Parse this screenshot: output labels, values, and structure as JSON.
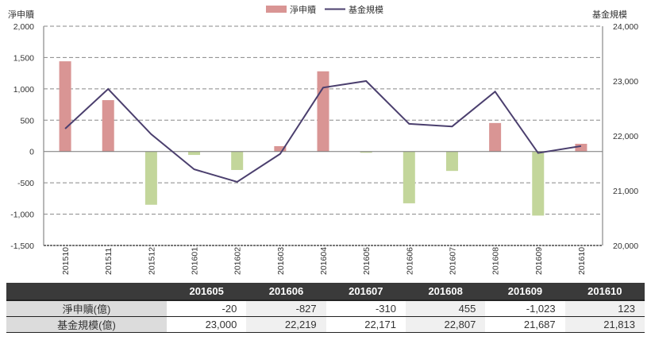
{
  "legend": {
    "bar_label": "淨申贖",
    "line_label": "基金規模"
  },
  "axes": {
    "left_title": "淨申贖",
    "right_title": "基金規模",
    "left_ticks": [
      "2,000",
      "1,500",
      "1,000",
      "500",
      "0",
      "-500",
      "-1,000",
      "-1,500"
    ],
    "right_ticks": [
      "24,000",
      "23,000",
      "22,000",
      "21,000",
      "20,000"
    ]
  },
  "colors": {
    "positive_bar": "#d99594",
    "negative_bar": "#c3d69b",
    "line": "#4b3f6e",
    "table_header": "#3a3a3a"
  },
  "chart_data": {
    "type": "bar",
    "title": "",
    "categories": [
      "201510",
      "201511",
      "201512",
      "201601",
      "201602",
      "201603",
      "201604",
      "201605",
      "201606",
      "201607",
      "201608",
      "201609",
      "201610"
    ],
    "series": [
      {
        "name": "淨申贖",
        "type": "bar",
        "axis": "left",
        "values": [
          1440,
          820,
          -850,
          -55,
          -295,
          85,
          1280,
          -20,
          -827,
          -310,
          455,
          -1023,
          123
        ]
      },
      {
        "name": "基金規模",
        "type": "line",
        "axis": "right",
        "values": [
          22130,
          22855,
          22030,
          21390,
          21160,
          21670,
          22880,
          23000,
          22219,
          22171,
          22807,
          21687,
          21813
        ]
      }
    ],
    "ylabel": "淨申贖",
    "y2label": "基金規模",
    "ylim": [
      -1500,
      2000
    ],
    "y2lim": [
      20000,
      24000
    ],
    "grid": true,
    "legend_position": "top"
  },
  "table": {
    "columns": [
      "201605",
      "201606",
      "201607",
      "201608",
      "201609",
      "201610"
    ],
    "rows": [
      {
        "label": "淨申贖(億)",
        "values": [
          "-20",
          "-827",
          "-310",
          "455",
          "-1,023",
          "123"
        ]
      },
      {
        "label": "基金規模(億)",
        "values": [
          "23,000",
          "22,219",
          "22,171",
          "22,807",
          "21,687",
          "21,813"
        ]
      }
    ]
  }
}
